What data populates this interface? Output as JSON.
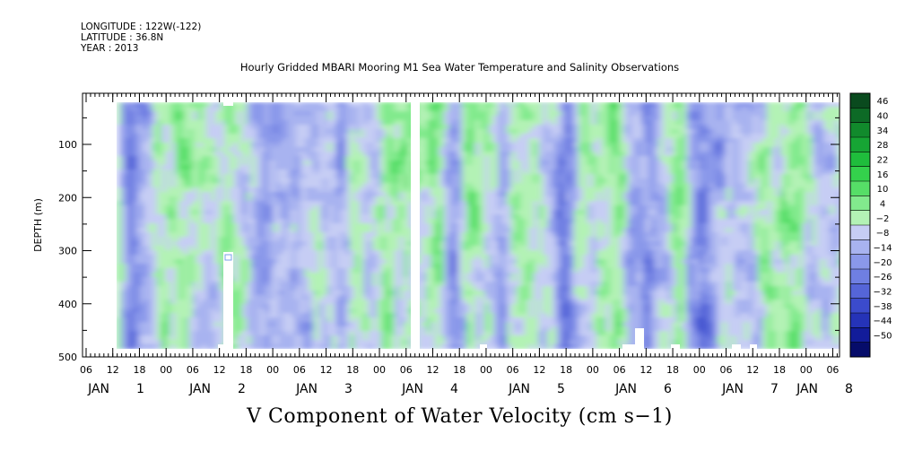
{
  "header": {
    "longitude": "LONGITUDE : 122W(-122)",
    "latitude": "LATITUDE : 36.8N",
    "year": "YEAR : 2013"
  },
  "title": "Hourly Gridded MBARI Mooring M1 Sea Water Temperature and Salinity Observations",
  "caption": "V Component of Water Velocity (cm s−1)",
  "chart_data": {
    "type": "heatmap",
    "title": "Hourly Gridded MBARI Mooring M1 Sea Water Temperature and Salinity Observations",
    "variable": "V Component of Water Velocity (cm s−1)",
    "ylabel": "DEPTH (m)",
    "yticks": [
      100,
      200,
      300,
      400,
      500
    ],
    "ylim": [
      500,
      10
    ],
    "y_inverted": true,
    "x_hour_ticks": [
      "06",
      "12",
      "18",
      "00",
      "06",
      "12",
      "18",
      "00",
      "06",
      "12",
      "18",
      "00",
      "06",
      "12",
      "18",
      "00",
      "06",
      "12",
      "18",
      "00",
      "06",
      "12",
      "18",
      "00",
      "06",
      "12",
      "18",
      "00",
      "06",
      "12",
      "18",
      "00",
      "06",
      "12",
      "18",
      "00",
      "06",
      "12",
      "18",
      "00",
      "06",
      "12",
      "18",
      "00",
      "06",
      "12",
      "18",
      "00",
      "06",
      "12",
      "18",
      "00",
      "06",
      "12",
      "18",
      "00",
      "06",
      "12",
      "18",
      "00",
      "06",
      "12",
      "18",
      "00",
      "06",
      "12",
      "18",
      "00",
      "06",
      "12",
      "18",
      "00",
      "06",
      "12",
      "18",
      "00",
      "06",
      "12",
      "18",
      "00",
      "06",
      "12",
      "18",
      "00",
      "06",
      "12",
      "18",
      "00",
      "06",
      "12",
      "18",
      "00",
      "06",
      "12",
      "18",
      "00",
      "06",
      "12",
      "18",
      "00",
      "06",
      "12",
      "18",
      "00",
      "06",
      "12",
      "18",
      "00",
      "06",
      "12",
      "18",
      "00",
      "06",
      "12",
      "18",
      "00",
      "06",
      "12",
      "18",
      "00",
      "06",
      "12",
      "18",
      "00",
      "06",
      "12",
      "18",
      "00",
      "06",
      "12",
      "18",
      "00",
      "06",
      "12",
      "18",
      "00",
      "06",
      "12",
      "18",
      "00",
      "06",
      "12",
      "18",
      "00",
      "06",
      "12",
      "18",
      "00",
      "06",
      "12",
      "18",
      "00",
      "06",
      "12",
      "18",
      "00",
      "06",
      "12",
      "18",
      "00",
      "06"
    ],
    "x_day_labels": [
      {
        "month": "JAN",
        "day": "1"
      },
      {
        "month": "JAN",
        "day": "2"
      },
      {
        "month": "JAN",
        "day": "3"
      },
      {
        "month": "JAN",
        "day": "4"
      },
      {
        "month": "JAN",
        "day": "5"
      },
      {
        "month": "JAN",
        "day": "6"
      },
      {
        "month": "JAN",
        "day": "7"
      },
      {
        "month": "JAN",
        "day": "8"
      }
    ],
    "colorbar": {
      "levels": [
        "46",
        "40",
        "34",
        "28",
        "22",
        "16",
        "10",
        "4",
        "−2",
        "−8",
        "−14",
        "−20",
        "−26",
        "−32",
        "−38",
        "−44",
        "−50"
      ],
      "colors_top_to_bottom": [
        "#0a4a1e",
        "#0d6a26",
        "#118a2c",
        "#16a534",
        "#1fbd3c",
        "#34d14c",
        "#56de67",
        "#82ea8d",
        "#b3f2b5",
        "#c6cdf4",
        "#a8b3f0",
        "#8a98ea",
        "#6f7fe2",
        "#5565d8",
        "#3b4bcc",
        "#2533b8",
        "#121c9a",
        "#060c6a"
      ]
    },
    "missing_data": [
      "Jan 2 ~14:00 below 300 m",
      "Jan 4 ~06:00 full column"
    ]
  }
}
